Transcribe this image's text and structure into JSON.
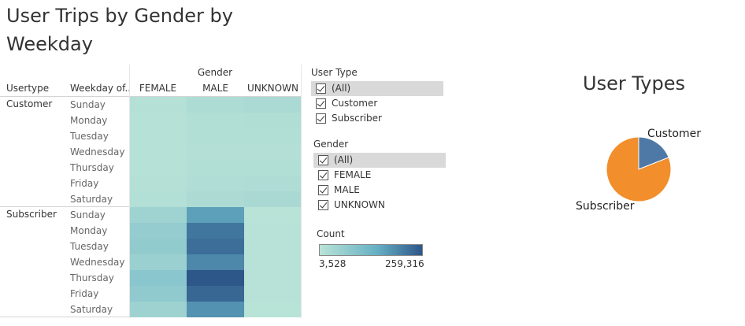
{
  "dashboard": {
    "title": "User Trips by Gender by Weekday"
  },
  "chart_data": [
    {
      "type": "heatmap",
      "column_group_label": "Gender",
      "row_headers": [
        "Usertype",
        "Weekday of.."
      ],
      "columns": [
        "FEMALE",
        "MALE",
        "UNKNOWN"
      ],
      "groups": [
        "Customer",
        "Subscriber"
      ],
      "rows": [
        "Sunday",
        "Monday",
        "Tuesday",
        "Wednesday",
        "Thursday",
        "Friday",
        "Saturday"
      ],
      "values": {
        "Customer": [
          [
            12000,
            22000,
            26000
          ],
          [
            9000,
            16000,
            17000
          ],
          [
            9000,
            15000,
            16000
          ],
          [
            8000,
            13000,
            13000
          ],
          [
            9000,
            15000,
            15000
          ],
          [
            11000,
            18000,
            19000
          ],
          [
            14000,
            23000,
            28000
          ]
        ],
        "Subscriber": [
          [
            45000,
            155000,
            3528
          ],
          [
            62000,
            215000,
            5000
          ],
          [
            65000,
            225000,
            5500
          ],
          [
            52000,
            190000,
            5200
          ],
          [
            78000,
            259316,
            5800
          ],
          [
            68000,
            236000,
            5400
          ],
          [
            48000,
            175000,
            4600
          ]
        ]
      },
      "color_legend": {
        "title": "Count",
        "min": 3528,
        "max": 259316,
        "min_label": "3,528",
        "max_label": "259,316",
        "color_min": "#b9e3d7",
        "color_max": "#2d5689"
      }
    },
    {
      "type": "pie",
      "title": "User Types",
      "slices": [
        {
          "label": "Customer",
          "value": 19,
          "color": "#4e79a7"
        },
        {
          "label": "Subscriber",
          "value": 81,
          "color": "#f28e2b"
        }
      ]
    }
  ],
  "filters": {
    "user_type": {
      "title": "User Type",
      "options": [
        "(All)",
        "Customer",
        "Subscriber"
      ]
    },
    "gender": {
      "title": "Gender",
      "options": [
        "(All)",
        "FEMALE",
        "MALE",
        "UNKNOWN"
      ]
    }
  }
}
